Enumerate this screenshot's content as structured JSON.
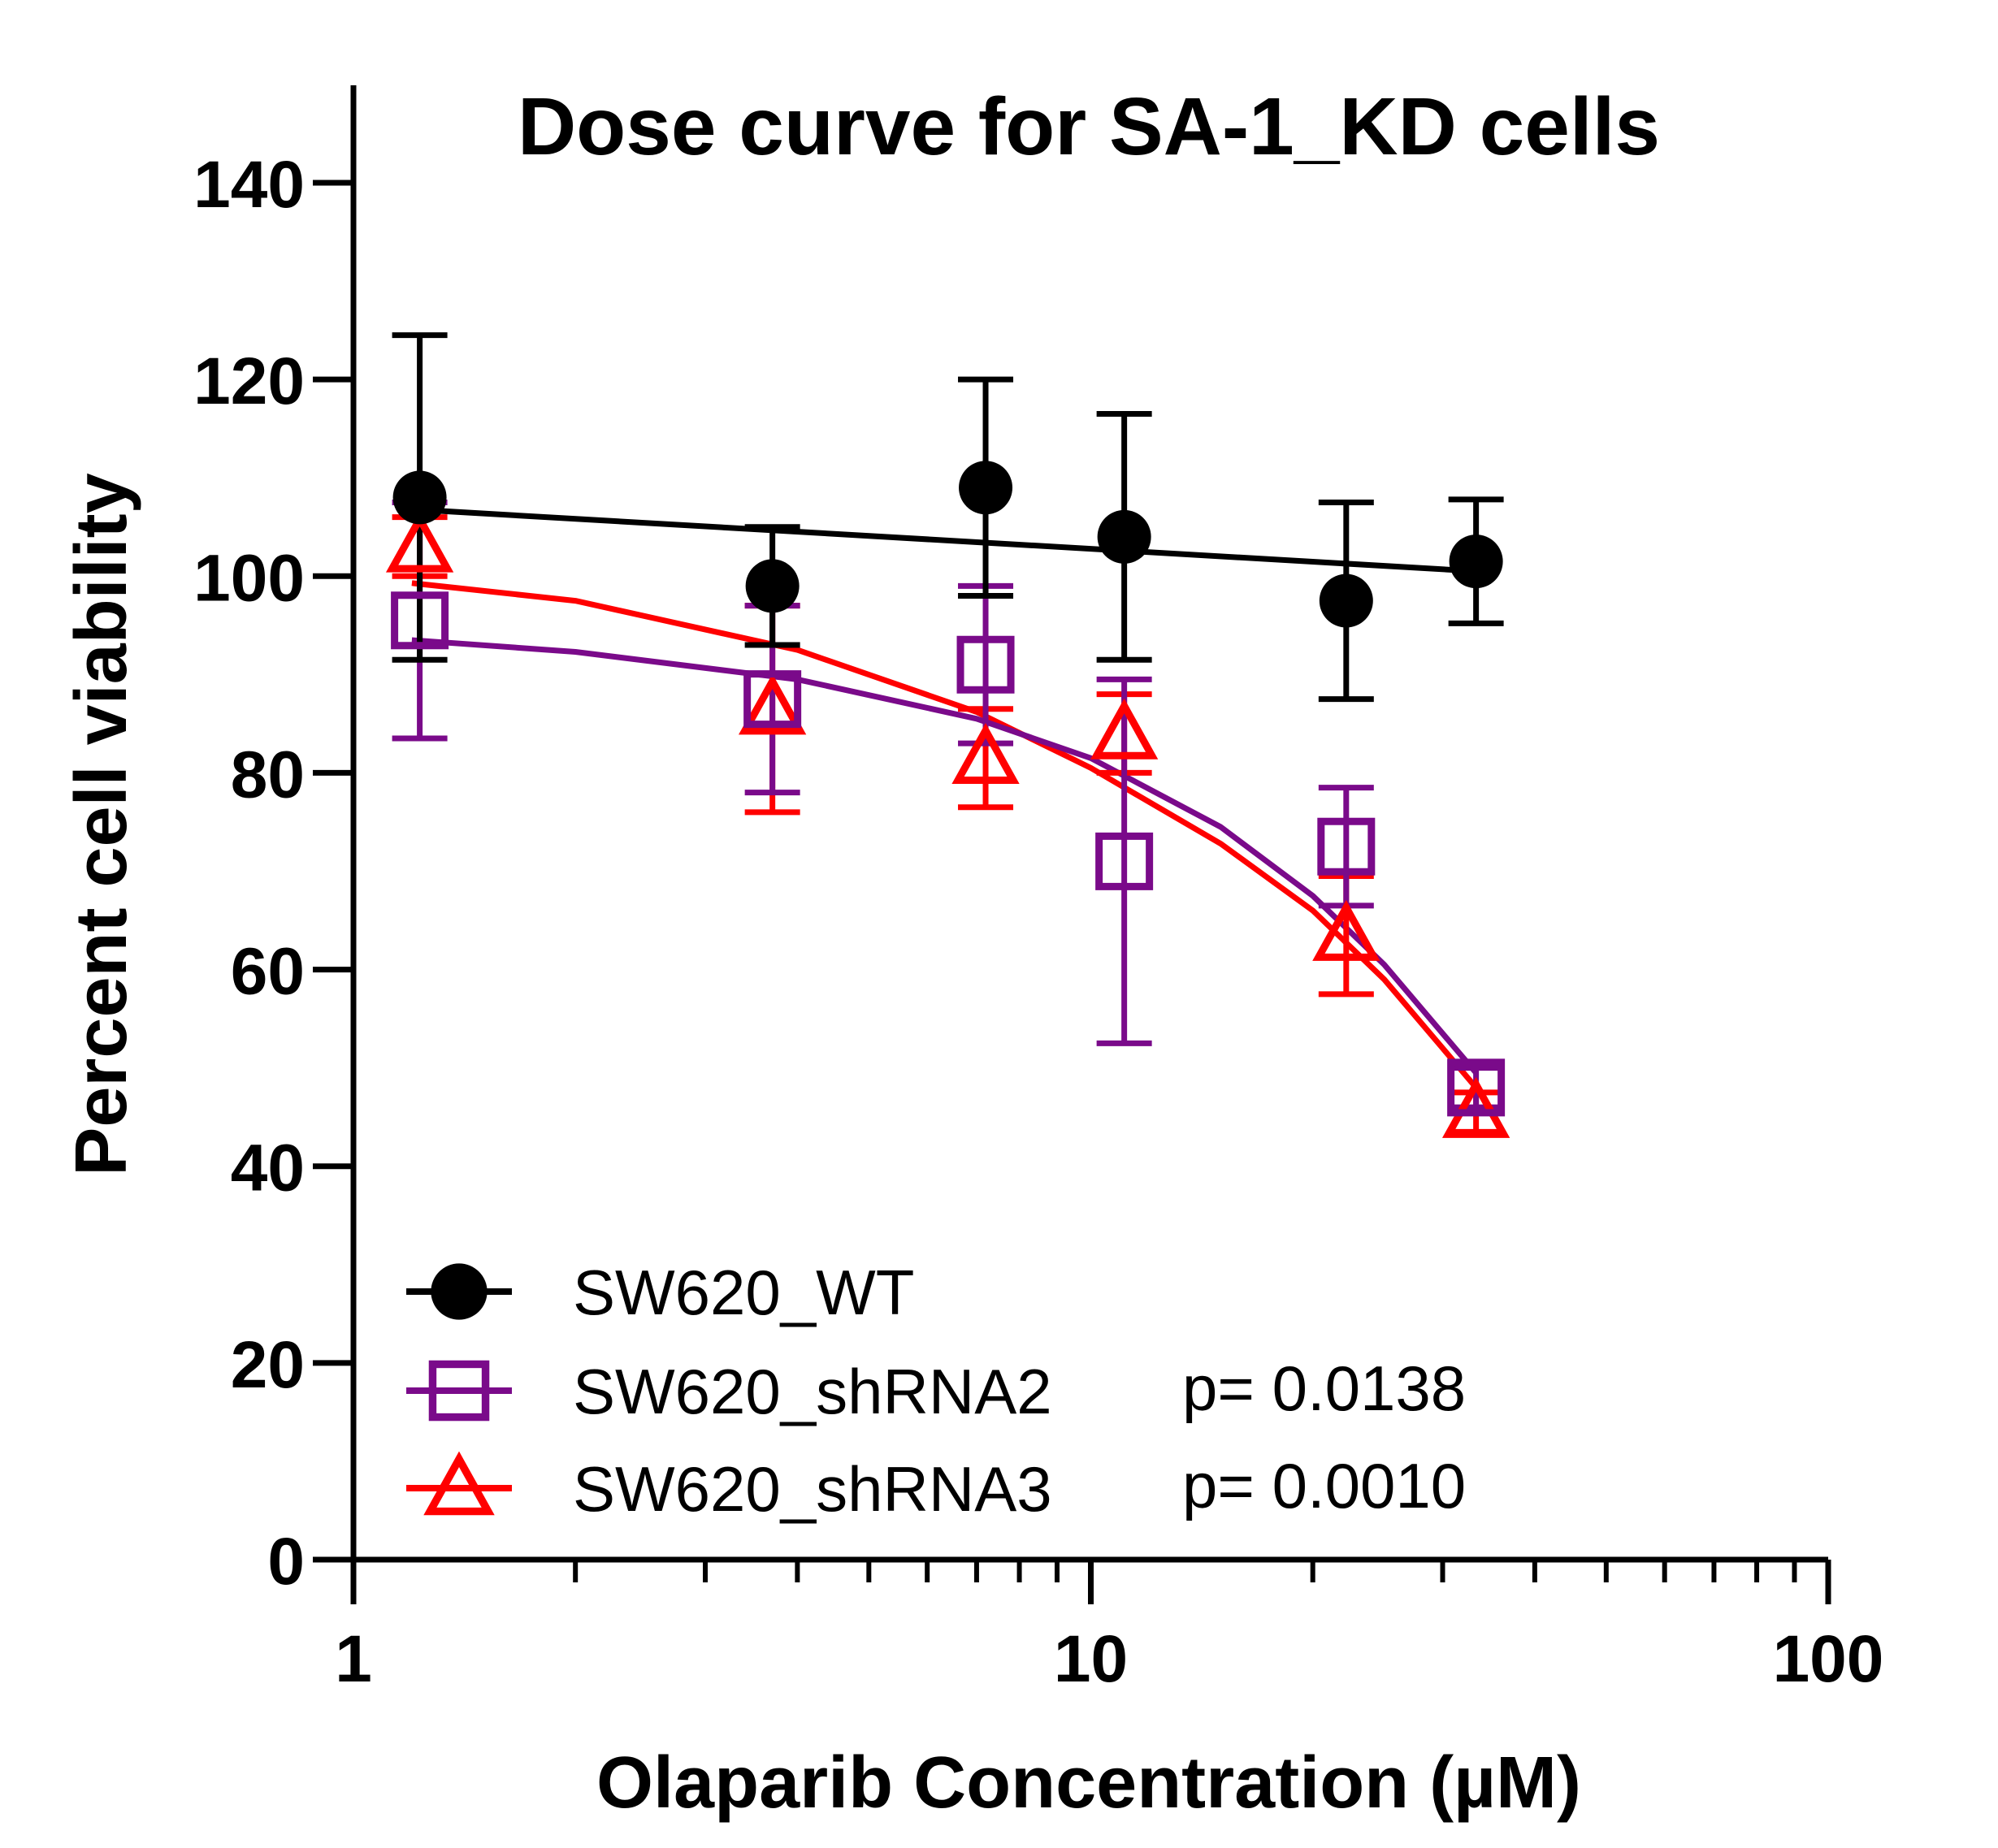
{
  "chart_data": {
    "type": "scatter",
    "title": "Dose curve for SA-1_KD cells",
    "xlabel": "Olaparib Concentration (µM)",
    "ylabel": "Percent cell viability",
    "xscale": "log",
    "xlim": [
      1,
      100
    ],
    "ylim": [
      0,
      150
    ],
    "xticks": [
      1,
      10,
      100
    ],
    "xtick_labels": [
      "1",
      "10",
      "100"
    ],
    "yticks": [
      0,
      20,
      40,
      60,
      80,
      100,
      120,
      140
    ],
    "ytick_labels": [
      "0",
      "20",
      "40",
      "60",
      "80",
      "100",
      "120",
      "140"
    ],
    "grid": false,
    "legend_position": "bottom-left",
    "series": [
      {
        "name": "SW620_WT",
        "marker": "filled-circle",
        "color": "#000000",
        "p_value": "",
        "x": [
          1.23,
          3.7,
          7.2,
          11.1,
          22.2,
          33.3
        ],
        "y": [
          108,
          99,
          109,
          104,
          97.5,
          101.5
        ],
        "error": [
          16.5,
          6.0,
          11.0,
          12.5,
          10.0,
          6.3
        ],
        "fit": {
          "x": [
            1.2,
            33.3
          ],
          "y": [
            106.8,
            100.5
          ]
        }
      },
      {
        "name": "SW620_shRNA2",
        "marker": "open-square",
        "color": "#7a0a8a",
        "p_value": "p= 0.0138",
        "x": [
          1.23,
          3.7,
          7.2,
          11.1,
          22.2,
          33.3
        ],
        "y": [
          95.5,
          87.5,
          91,
          71,
          72.5,
          48
        ],
        "error": [
          12.0,
          9.5,
          8.0,
          18.5,
          6.0,
          2.0
        ],
        "fit": {
          "x": [
            1.2,
            2,
            4,
            7,
            10,
            15,
            20,
            25,
            30,
            33.3
          ],
          "y": [
            93.5,
            92.3,
            89.5,
            85.5,
            81.5,
            74.5,
            67.5,
            60.5,
            53.5,
            49.5
          ]
        }
      },
      {
        "name": "SW620_shRNA3",
        "marker": "open-triangle",
        "color": "#ff0000",
        "p_value": "p= 0.0010",
        "x": [
          1.23,
          3.7,
          7.2,
          11.1,
          22.2,
          33.3
        ],
        "y": [
          103,
          86.5,
          81.5,
          84,
          63.5,
          45.5
        ],
        "error": [
          3.0,
          10.5,
          5.0,
          4.0,
          6.0,
          2.0
        ],
        "fit": {
          "x": [
            1.2,
            2,
            4,
            7,
            10,
            15,
            20,
            25,
            30,
            33.3
          ],
          "y": [
            99.3,
            97.5,
            92.5,
            86.2,
            80.5,
            72.8,
            66.0,
            59.0,
            52.0,
            48.0
          ]
        }
      }
    ]
  }
}
